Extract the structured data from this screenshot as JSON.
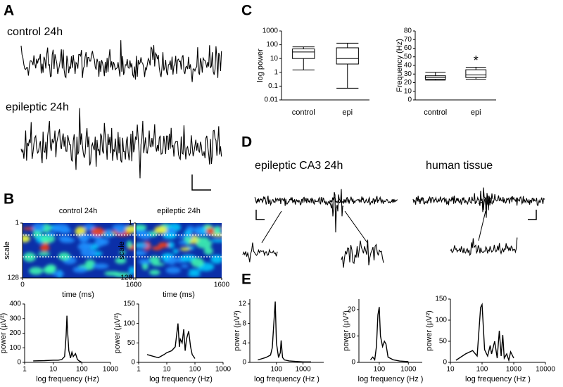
{
  "panel_labels": [
    "A",
    "B",
    "C",
    "D",
    "E"
  ],
  "trace_labels": [
    "control 24h",
    "epileptic 24h",
    "epileptic CA3 24h",
    "human tissue"
  ],
  "chart_data": [
    {
      "type": "heatmap",
      "title": "control 24h",
      "xlabel": "time (ms)",
      "ylabel": "scale",
      "xlim": [
        0,
        1600
      ],
      "xticks": [
        0,
        1600
      ],
      "ylim": [
        1,
        128
      ],
      "yticks": [
        1,
        128
      ],
      "y_inverted": true
    },
    {
      "type": "heatmap",
      "title": "epileptic 24h",
      "xlabel": "time (ms)",
      "ylabel": "scale",
      "xlim": [
        0,
        1600
      ],
      "xticks": [
        0,
        1600
      ],
      "ylim": [
        1,
        128
      ],
      "yticks": [
        1,
        128
      ],
      "y_inverted": true
    },
    {
      "type": "line",
      "xlabel": "log frequency (Hz)",
      "ylabel": "power (µV²)",
      "xscale": "log",
      "xlim": [
        1,
        1000
      ],
      "xticks": [
        1,
        10,
        100,
        1000
      ],
      "ylim": [
        0,
        400
      ],
      "yticks": [
        0,
        100,
        200,
        300,
        400
      ],
      "color": "#000000",
      "x": [
        2,
        5,
        10,
        15,
        20,
        25,
        28,
        30,
        32,
        35,
        40,
        45,
        50,
        60,
        70,
        80,
        100
      ],
      "values": [
        10,
        12,
        15,
        15,
        20,
        40,
        180,
        320,
        200,
        80,
        30,
        70,
        40,
        60,
        20,
        10,
        0
      ]
    },
    {
      "type": "line",
      "xlabel": "log frequency (Hz)",
      "ylabel": "power (µV²)",
      "xscale": "log",
      "xlim": [
        1,
        1000
      ],
      "xticks": [
        1,
        10,
        100,
        1000
      ],
      "ylim": [
        0,
        150
      ],
      "yticks": [
        0,
        50,
        100,
        150
      ],
      "color": "#000000",
      "x": [
        2,
        5,
        8,
        10,
        15,
        20,
        25,
        28,
        30,
        35,
        40,
        45,
        50,
        60,
        70,
        80,
        100
      ],
      "values": [
        20,
        12,
        20,
        25,
        30,
        40,
        100,
        40,
        60,
        50,
        85,
        30,
        60,
        80,
        40,
        20,
        10
      ]
    },
    {
      "type": "box",
      "ylabel": "log power",
      "yscale": "log",
      "ylim": [
        0.01,
        1000
      ],
      "yticks": [
        0.01,
        0.1,
        1,
        10,
        100,
        1000
      ],
      "color": "#000000",
      "categories": [
        "control",
        "epi"
      ],
      "boxes": [
        {
          "min": 1.5,
          "q1": 10,
          "median": 30,
          "q3": 50,
          "max": 70
        },
        {
          "min": 0.07,
          "q1": 4,
          "median": 10,
          "q3": 60,
          "max": 130
        }
      ]
    },
    {
      "type": "box",
      "ylabel": "Frequency (Hz)",
      "ylim": [
        0,
        80
      ],
      "yticks": [
        0,
        10,
        20,
        30,
        40,
        50,
        60,
        70,
        80
      ],
      "color": "#000000",
      "categories": [
        "control",
        "epi"
      ],
      "boxes": [
        {
          "min": 23,
          "q1": 24,
          "median": 26,
          "q3": 28,
          "max": 32
        },
        {
          "min": 24,
          "q1": 26,
          "median": 29,
          "q3": 35,
          "max": 38
        }
      ],
      "annotation": "*"
    },
    {
      "type": "line",
      "xlabel": "log frequency (Hz )",
      "ylabel": "power (µV²)",
      "xscale": "log",
      "xlim": [
        10,
        6000
      ],
      "xticks": [
        100,
        1000
      ],
      "ylim": [
        0,
        13
      ],
      "yticks": [
        0,
        4,
        8,
        12
      ],
      "color": "#000000",
      "x": [
        20,
        40,
        60,
        70,
        80,
        90,
        100,
        120,
        140,
        150,
        170,
        200,
        300,
        500,
        1000,
        2000
      ],
      "values": [
        0.5,
        1,
        1.5,
        3,
        8,
        12.5,
        4,
        1,
        2,
        4.5,
        1,
        0.5,
        0.3,
        0.2,
        0.1,
        0.1
      ]
    },
    {
      "type": "line",
      "xlabel": "log frequency (Hz )",
      "ylabel": "power (µV²)",
      "xscale": "log",
      "xlim": [
        20,
        3000
      ],
      "xticks": [
        100,
        1000
      ],
      "ylim": [
        0,
        24
      ],
      "yticks": [
        0,
        10,
        20
      ],
      "color": "#000000",
      "x": [
        50,
        60,
        70,
        80,
        90,
        100,
        110,
        130,
        150,
        170,
        200,
        300,
        500,
        1000
      ],
      "values": [
        1,
        2,
        1,
        6,
        18,
        21,
        10,
        6,
        8,
        7,
        2,
        1,
        0.5,
        0.3
      ]
    },
    {
      "type": "line",
      "xlabel": "log frequency (Hz )",
      "ylabel": "power (µV²)",
      "xscale": "log",
      "xlim": [
        10,
        10000
      ],
      "xticks": [
        10,
        100,
        1000,
        10000
      ],
      "ylim": [
        0,
        150
      ],
      "yticks": [
        0,
        50,
        100,
        150
      ],
      "color": "#000000",
      "x": [
        15,
        30,
        50,
        70,
        90,
        100,
        120,
        150,
        180,
        200,
        250,
        300,
        350,
        400,
        450,
        500,
        600,
        700,
        800,
        1000
      ],
      "values": [
        5,
        20,
        28,
        15,
        130,
        137,
        30,
        15,
        40,
        20,
        50,
        10,
        75,
        15,
        65,
        10,
        20,
        5,
        25,
        10
      ]
    }
  ]
}
